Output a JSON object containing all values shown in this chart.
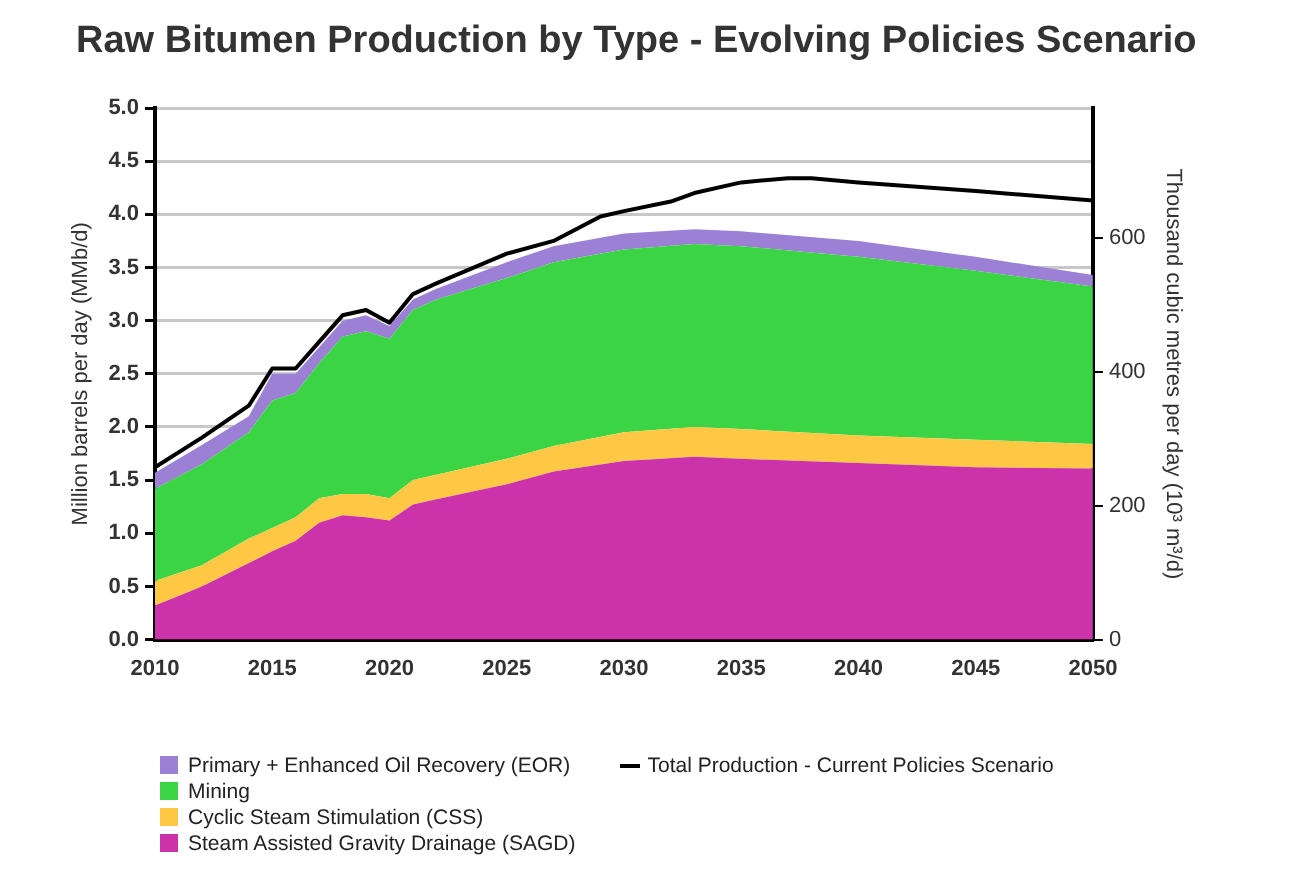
{
  "chart_data": {
    "type": "area",
    "title": "Raw Bitumen Production by Type - Evolving Policies Scenario",
    "ylabel": "Million barrels per day (MMb/d)",
    "y2label": "Thousand cubic metres per day (10³ m³/d)",
    "x": [
      2010,
      2012,
      2014,
      2015,
      2016,
      2017,
      2018,
      2019,
      2020,
      2021,
      2022,
      2025,
      2027,
      2030,
      2033,
      2035,
      2040,
      2045,
      2050
    ],
    "stacked": true,
    "series": [
      {
        "name": "Steam Assisted Gravity Drainage (SAGD)",
        "color": "#cc33aa",
        "values": [
          0.32,
          0.5,
          0.72,
          0.83,
          0.93,
          1.1,
          1.17,
          1.15,
          1.12,
          1.27,
          1.32,
          1.46,
          1.58,
          1.68,
          1.72,
          1.7,
          1.66,
          1.62,
          1.61
        ]
      },
      {
        "name": "Cyclic Steam Stimulation (CSS)",
        "color": "#ffc844",
        "values": [
          0.23,
          0.2,
          0.23,
          0.22,
          0.22,
          0.23,
          0.2,
          0.22,
          0.21,
          0.23,
          0.23,
          0.24,
          0.24,
          0.27,
          0.28,
          0.28,
          0.26,
          0.26,
          0.23
        ]
      },
      {
        "name": "Mining",
        "color": "#3ad444",
        "values": [
          0.87,
          0.95,
          1.0,
          1.2,
          1.17,
          1.27,
          1.48,
          1.53,
          1.5,
          1.6,
          1.65,
          1.7,
          1.73,
          1.72,
          1.72,
          1.72,
          1.68,
          1.59,
          1.48
        ]
      },
      {
        "name": "Primary + Enhanced Oil Recovery (EOR)",
        "color": "#9b80d6",
        "values": [
          0.15,
          0.18,
          0.15,
          0.25,
          0.18,
          0.15,
          0.15,
          0.15,
          0.12,
          0.1,
          0.1,
          0.15,
          0.15,
          0.15,
          0.14,
          0.14,
          0.15,
          0.13,
          0.11
        ]
      },
      {
        "name": "Total Production - Current Policies Scenario",
        "type": "line",
        "color": "#000000",
        "x": [
          2010,
          2012,
          2014,
          2015,
          2016,
          2017,
          2018,
          2019,
          2020,
          2021,
          2022,
          2025,
          2027,
          2029,
          2030,
          2032,
          2033,
          2035,
          2037,
          2038,
          2040,
          2045,
          2050
        ],
        "values": [
          1.62,
          1.9,
          2.2,
          2.55,
          2.55,
          2.8,
          3.05,
          3.1,
          2.98,
          3.25,
          3.35,
          3.63,
          3.75,
          3.98,
          4.03,
          4.12,
          4.2,
          4.3,
          4.34,
          4.34,
          4.3,
          4.22,
          4.13
        ]
      }
    ],
    "xlim": [
      2010,
      2050
    ],
    "xticks": [
      2010,
      2015,
      2020,
      2025,
      2030,
      2035,
      2040,
      2045,
      2050
    ],
    "ylim": [
      0,
      5
    ],
    "yticks": [
      {
        "value": 0,
        "label": "0.0"
      },
      {
        "value": 0.5,
        "label": "0.5"
      },
      {
        "value": 1,
        "label": "1.0"
      },
      {
        "value": 1.5,
        "label": "1.5"
      },
      {
        "value": 2,
        "label": "2.0"
      },
      {
        "value": 2.5,
        "label": "2.5"
      },
      {
        "value": 3,
        "label": "3.0"
      },
      {
        "value": 3.5,
        "label": "3.5"
      },
      {
        "value": 4,
        "label": "4.0"
      },
      {
        "value": 4.5,
        "label": "4.5"
      },
      {
        "value": 5,
        "label": "5.0"
      }
    ],
    "y2lim": [
      0,
      795
    ],
    "y2ticks": [
      0,
      200,
      400,
      600
    ],
    "grid": "y",
    "legend": "bottom",
    "marker": "none"
  }
}
